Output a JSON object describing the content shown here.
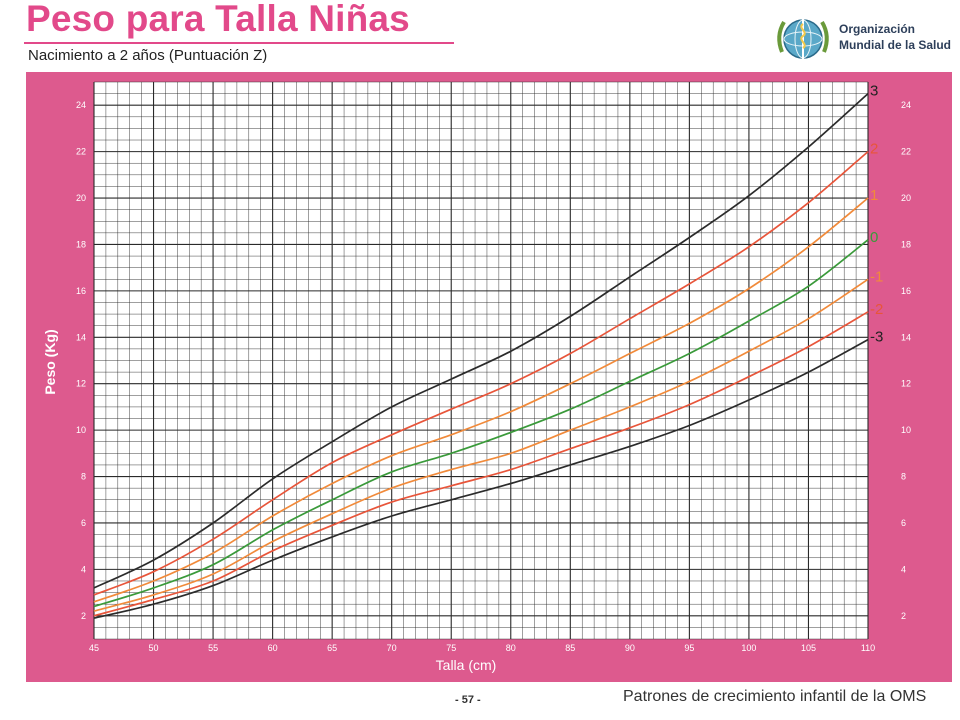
{
  "header": {
    "title": "Peso para Talla Niñas",
    "subtitle": "Nacimiento a 2 años (Puntuación Z)",
    "org_line1": "Organización",
    "org_line2": "Mundial de la Salud",
    "logo_icon": "who-emblem-icon"
  },
  "footer": {
    "page_number": "- 57 -",
    "source": "Patrones de crecimiento infantil de la OMS"
  },
  "colors": {
    "background_band": "#dd5a8e",
    "grid_bg": "#ffffff",
    "grid_line": "#2a2a2a",
    "title": "#e2498a",
    "line_3": "#2b2b2b",
    "line_2": "#e8553a",
    "line_1": "#f18a3a",
    "line_0": "#3a9a3a"
  },
  "chart_data": {
    "type": "line",
    "xlabel": "Talla (cm)",
    "ylabel": "Peso (Kg)",
    "xlim": [
      45,
      110
    ],
    "ylim": [
      1,
      25
    ],
    "x_ticks": [
      45,
      50,
      55,
      60,
      65,
      70,
      75,
      80,
      85,
      90,
      95,
      100,
      105,
      110
    ],
    "y_ticks": [
      2,
      4,
      6,
      8,
      10,
      12,
      14,
      16,
      18,
      20,
      22,
      24
    ],
    "grid": true,
    "x": [
      45,
      50,
      55,
      60,
      65,
      70,
      75,
      80,
      85,
      90,
      95,
      100,
      105,
      110
    ],
    "series": [
      {
        "name": "3",
        "color": "#2b2b2b",
        "values": [
          3.2,
          4.4,
          6.0,
          7.9,
          9.5,
          11.0,
          12.2,
          13.4,
          14.9,
          16.6,
          18.3,
          20.1,
          22.2,
          24.5
        ]
      },
      {
        "name": "2",
        "color": "#e8553a",
        "values": [
          2.9,
          3.9,
          5.3,
          7.0,
          8.6,
          9.8,
          10.9,
          12.0,
          13.3,
          14.8,
          16.3,
          17.9,
          19.8,
          22.0
        ]
      },
      {
        "name": "1",
        "color": "#f18a3a",
        "values": [
          2.6,
          3.5,
          4.7,
          6.3,
          7.7,
          8.9,
          9.8,
          10.8,
          12.0,
          13.3,
          14.6,
          16.1,
          17.9,
          20.0
        ]
      },
      {
        "name": "0",
        "color": "#3a9a3a",
        "values": [
          2.4,
          3.2,
          4.2,
          5.7,
          7.0,
          8.2,
          9.0,
          9.9,
          10.9,
          12.1,
          13.3,
          14.7,
          16.2,
          18.2
        ]
      },
      {
        "name": "-1",
        "color": "#f18a3a",
        "values": [
          2.2,
          2.9,
          3.8,
          5.2,
          6.4,
          7.5,
          8.3,
          9.0,
          10.0,
          11.0,
          12.1,
          13.4,
          14.8,
          16.5
        ]
      },
      {
        "name": "-2",
        "color": "#e8553a",
        "values": [
          2.0,
          2.7,
          3.5,
          4.8,
          5.9,
          6.9,
          7.6,
          8.3,
          9.2,
          10.1,
          11.1,
          12.3,
          13.6,
          15.1
        ]
      },
      {
        "name": "-3",
        "color": "#2b2b2b",
        "values": [
          1.9,
          2.5,
          3.3,
          4.4,
          5.4,
          6.3,
          7.0,
          7.7,
          8.5,
          9.3,
          10.2,
          11.3,
          12.5,
          13.9
        ]
      }
    ]
  }
}
